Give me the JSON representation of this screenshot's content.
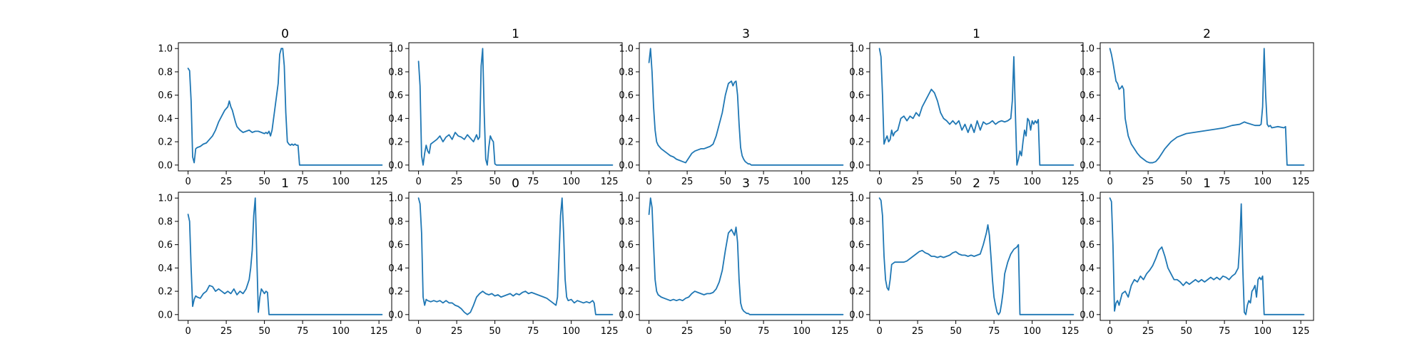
{
  "figure": {
    "line_color": "#1f77b4",
    "layout": "2 rows x 5 columns"
  },
  "chart_data": [
    {
      "type": "line",
      "title": "0",
      "xlim": [
        0,
        127
      ],
      "ylim": [
        0,
        1.0
      ],
      "xticks": [
        0,
        25,
        50,
        75,
        100,
        125
      ],
      "yticks": [
        0.0,
        0.2,
        0.4,
        0.6,
        0.8,
        1.0
      ],
      "x": [
        0,
        1,
        2,
        3,
        4,
        5,
        6,
        8,
        10,
        12,
        14,
        16,
        18,
        20,
        22,
        24,
        26,
        27,
        28,
        29,
        30,
        31,
        32,
        34,
        36,
        38,
        40,
        42,
        44,
        46,
        48,
        50,
        51,
        52,
        53,
        54,
        55,
        56,
        57,
        58,
        59,
        60,
        61,
        62,
        63,
        64,
        65,
        66,
        67,
        68,
        69,
        70,
        71,
        72,
        73,
        74,
        75,
        127
      ],
      "y": [
        0.83,
        0.81,
        0.55,
        0.07,
        0.02,
        0.14,
        0.15,
        0.16,
        0.18,
        0.19,
        0.22,
        0.25,
        0.3,
        0.37,
        0.42,
        0.47,
        0.5,
        0.55,
        0.5,
        0.47,
        0.42,
        0.37,
        0.33,
        0.3,
        0.28,
        0.29,
        0.3,
        0.28,
        0.29,
        0.29,
        0.28,
        0.27,
        0.28,
        0.27,
        0.29,
        0.25,
        0.3,
        0.4,
        0.5,
        0.6,
        0.7,
        0.95,
        1.0,
        1.0,
        0.85,
        0.45,
        0.2,
        0.18,
        0.17,
        0.18,
        0.17,
        0.18,
        0.17,
        0.17,
        0.0,
        0.0,
        0.0,
        0.0
      ]
    },
    {
      "type": "line",
      "title": "1",
      "xlim": [
        0,
        127
      ],
      "ylim": [
        0,
        1.0
      ],
      "xticks": [
        0,
        25,
        50,
        75,
        100,
        125
      ],
      "yticks": [
        0.0,
        0.2,
        0.4,
        0.6,
        0.8,
        1.0
      ],
      "x": [
        0,
        1,
        2,
        3,
        4,
        5,
        6,
        7,
        8,
        10,
        12,
        14,
        16,
        18,
        20,
        22,
        24,
        26,
        28,
        30,
        32,
        34,
        36,
        38,
        39,
        40,
        41,
        42,
        43,
        44,
        45,
        46,
        47,
        48,
        49,
        50,
        51,
        52,
        127
      ],
      "y": [
        0.89,
        0.68,
        0.08,
        0.0,
        0.1,
        0.17,
        0.12,
        0.1,
        0.18,
        0.2,
        0.22,
        0.25,
        0.2,
        0.24,
        0.26,
        0.22,
        0.28,
        0.25,
        0.24,
        0.22,
        0.26,
        0.23,
        0.2,
        0.26,
        0.22,
        0.24,
        0.85,
        1.0,
        0.45,
        0.05,
        0.0,
        0.15,
        0.25,
        0.22,
        0.2,
        0.01,
        0.0,
        0.0,
        0.0
      ]
    },
    {
      "type": "line",
      "title": "3",
      "xlim": [
        0,
        127
      ],
      "ylim": [
        0,
        1.0
      ],
      "xticks": [
        0,
        25,
        50,
        75,
        100,
        125
      ],
      "yticks": [
        0.0,
        0.2,
        0.4,
        0.6,
        0.8,
        1.0
      ],
      "x": [
        0,
        1,
        2,
        3,
        4,
        5,
        6,
        8,
        10,
        12,
        14,
        16,
        18,
        20,
        22,
        24,
        26,
        28,
        30,
        32,
        34,
        36,
        38,
        40,
        42,
        44,
        46,
        48,
        50,
        52,
        54,
        55,
        56,
        57,
        58,
        59,
        60,
        61,
        62,
        63,
        64,
        65,
        66,
        67,
        68,
        70,
        127
      ],
      "y": [
        0.88,
        1.0,
        0.8,
        0.5,
        0.3,
        0.2,
        0.17,
        0.14,
        0.12,
        0.1,
        0.08,
        0.07,
        0.05,
        0.04,
        0.03,
        0.02,
        0.06,
        0.1,
        0.12,
        0.13,
        0.14,
        0.14,
        0.15,
        0.16,
        0.18,
        0.25,
        0.35,
        0.45,
        0.6,
        0.7,
        0.72,
        0.68,
        0.71,
        0.72,
        0.6,
        0.35,
        0.15,
        0.08,
        0.05,
        0.03,
        0.02,
        0.01,
        0.01,
        0.0,
        0.0,
        0.0,
        0.0
      ]
    },
    {
      "type": "line",
      "title": "1",
      "xlim": [
        0,
        127
      ],
      "ylim": [
        0,
        1.0
      ],
      "xticks": [
        0,
        25,
        50,
        75,
        100,
        125
      ],
      "yticks": [
        0.0,
        0.2,
        0.4,
        0.6,
        0.8,
        1.0
      ],
      "x": [
        0,
        1,
        2,
        3,
        4,
        5,
        6,
        7,
        8,
        9,
        10,
        12,
        14,
        16,
        18,
        20,
        22,
        24,
        26,
        28,
        30,
        32,
        34,
        36,
        38,
        40,
        42,
        44,
        46,
        48,
        50,
        52,
        54,
        56,
        58,
        60,
        62,
        64,
        66,
        68,
        70,
        72,
        74,
        76,
        78,
        80,
        82,
        84,
        86,
        87,
        88,
        89,
        90,
        91,
        92,
        93,
        94,
        95,
        96,
        97,
        98,
        99,
        100,
        101,
        102,
        103,
        104,
        105,
        106,
        107,
        108,
        127
      ],
      "y": [
        1.0,
        0.93,
        0.6,
        0.18,
        0.22,
        0.25,
        0.2,
        0.22,
        0.3,
        0.25,
        0.28,
        0.3,
        0.4,
        0.42,
        0.38,
        0.42,
        0.4,
        0.45,
        0.42,
        0.5,
        0.55,
        0.6,
        0.65,
        0.62,
        0.55,
        0.45,
        0.4,
        0.38,
        0.35,
        0.38,
        0.35,
        0.38,
        0.3,
        0.35,
        0.28,
        0.35,
        0.28,
        0.38,
        0.3,
        0.37,
        0.35,
        0.36,
        0.38,
        0.35,
        0.37,
        0.38,
        0.37,
        0.38,
        0.4,
        0.55,
        0.93,
        0.45,
        0.0,
        0.05,
        0.12,
        0.08,
        0.2,
        0.3,
        0.25,
        0.4,
        0.38,
        0.3,
        0.38,
        0.35,
        0.38,
        0.36,
        0.39,
        0.0,
        0.0,
        0.0,
        0.0,
        0.0
      ]
    },
    {
      "type": "line",
      "title": "2",
      "xlim": [
        0,
        127
      ],
      "ylim": [
        0,
        1.0
      ],
      "xticks": [
        0,
        25,
        50,
        75,
        100,
        125
      ],
      "yticks": [
        0.0,
        0.2,
        0.4,
        0.6,
        0.8,
        1.0
      ],
      "x": [
        0,
        1,
        2,
        3,
        4,
        5,
        6,
        7,
        8,
        9,
        10,
        12,
        14,
        16,
        18,
        20,
        22,
        24,
        26,
        28,
        30,
        32,
        34,
        36,
        38,
        40,
        42,
        44,
        46,
        48,
        50,
        55,
        60,
        65,
        70,
        75,
        80,
        85,
        88,
        90,
        95,
        98,
        99,
        100,
        101,
        102,
        103,
        104,
        105,
        106,
        110,
        114,
        115,
        116,
        117,
        118,
        127
      ],
      "y": [
        1.0,
        0.95,
        0.88,
        0.8,
        0.72,
        0.7,
        0.65,
        0.66,
        0.68,
        0.65,
        0.4,
        0.25,
        0.18,
        0.14,
        0.1,
        0.07,
        0.05,
        0.03,
        0.02,
        0.02,
        0.03,
        0.06,
        0.1,
        0.14,
        0.17,
        0.2,
        0.22,
        0.24,
        0.25,
        0.26,
        0.27,
        0.28,
        0.29,
        0.3,
        0.31,
        0.32,
        0.34,
        0.35,
        0.37,
        0.36,
        0.34,
        0.34,
        0.35,
        0.5,
        1.0,
        0.6,
        0.35,
        0.33,
        0.34,
        0.32,
        0.33,
        0.32,
        0.33,
        0.0,
        0.0,
        0.0,
        0.0
      ]
    },
    {
      "type": "line",
      "title": "1",
      "xlim": [
        0,
        127
      ],
      "ylim": [
        0,
        1.0
      ],
      "xticks": [
        0,
        25,
        50,
        75,
        100,
        125
      ],
      "yticks": [
        0.0,
        0.2,
        0.4,
        0.6,
        0.8,
        1.0
      ],
      "x": [
        0,
        1,
        2,
        3,
        4,
        5,
        6,
        8,
        10,
        12,
        14,
        16,
        18,
        20,
        22,
        24,
        26,
        28,
        30,
        32,
        34,
        36,
        38,
        40,
        41,
        42,
        43,
        44,
        45,
        46,
        47,
        48,
        49,
        50,
        51,
        52,
        53,
        54,
        55,
        56,
        127
      ],
      "y": [
        0.86,
        0.8,
        0.4,
        0.07,
        0.13,
        0.16,
        0.15,
        0.14,
        0.18,
        0.2,
        0.25,
        0.24,
        0.2,
        0.22,
        0.2,
        0.18,
        0.2,
        0.18,
        0.22,
        0.17,
        0.2,
        0.18,
        0.22,
        0.3,
        0.4,
        0.55,
        0.85,
        1.0,
        0.5,
        0.02,
        0.15,
        0.22,
        0.2,
        0.18,
        0.2,
        0.19,
        0.0,
        0.0,
        0.0,
        0.0,
        0.0
      ]
    },
    {
      "type": "line",
      "title": "0",
      "xlim": [
        0,
        127
      ],
      "ylim": [
        0,
        1.0
      ],
      "xticks": [
        0,
        25,
        50,
        75,
        100,
        125
      ],
      "yticks": [
        0.0,
        0.2,
        0.4,
        0.6,
        0.8,
        1.0
      ],
      "x": [
        0,
        1,
        2,
        3,
        4,
        5,
        6,
        8,
        10,
        12,
        14,
        16,
        18,
        20,
        22,
        24,
        26,
        28,
        30,
        32,
        34,
        36,
        38,
        40,
        42,
        44,
        46,
        48,
        50,
        52,
        54,
        56,
        58,
        60,
        62,
        64,
        66,
        68,
        70,
        72,
        74,
        76,
        78,
        80,
        82,
        84,
        86,
        88,
        90,
        91,
        92,
        93,
        94,
        95,
        96,
        97,
        98,
        100,
        102,
        104,
        106,
        108,
        110,
        112,
        114,
        115,
        116,
        117,
        118,
        127
      ],
      "y": [
        1.0,
        0.95,
        0.7,
        0.15,
        0.08,
        0.13,
        0.12,
        0.11,
        0.12,
        0.11,
        0.12,
        0.1,
        0.12,
        0.1,
        0.1,
        0.08,
        0.07,
        0.05,
        0.02,
        0.0,
        0.02,
        0.08,
        0.15,
        0.18,
        0.2,
        0.18,
        0.17,
        0.18,
        0.16,
        0.17,
        0.15,
        0.16,
        0.17,
        0.18,
        0.16,
        0.18,
        0.17,
        0.19,
        0.2,
        0.18,
        0.19,
        0.18,
        0.17,
        0.16,
        0.15,
        0.14,
        0.12,
        0.1,
        0.08,
        0.15,
        0.5,
        0.85,
        1.0,
        0.7,
        0.3,
        0.15,
        0.12,
        0.13,
        0.1,
        0.12,
        0.11,
        0.1,
        0.11,
        0.1,
        0.12,
        0.1,
        0.0,
        0.0,
        0.0,
        0.0
      ]
    },
    {
      "type": "line",
      "title": "3",
      "xlim": [
        0,
        127
      ],
      "ylim": [
        0,
        1.0
      ],
      "xticks": [
        0,
        25,
        50,
        75,
        100,
        125
      ],
      "yticks": [
        0.0,
        0.2,
        0.4,
        0.6,
        0.8,
        1.0
      ],
      "x": [
        0,
        1,
        2,
        3,
        4,
        5,
        6,
        8,
        10,
        12,
        14,
        16,
        18,
        20,
        22,
        24,
        26,
        28,
        30,
        32,
        34,
        36,
        38,
        40,
        42,
        44,
        46,
        48,
        50,
        52,
        54,
        56,
        57,
        58,
        59,
        60,
        61,
        62,
        63,
        64,
        65,
        66,
        67,
        68,
        70,
        72,
        127
      ],
      "y": [
        0.86,
        1.0,
        0.92,
        0.6,
        0.3,
        0.2,
        0.17,
        0.15,
        0.14,
        0.13,
        0.12,
        0.13,
        0.12,
        0.13,
        0.12,
        0.14,
        0.15,
        0.18,
        0.2,
        0.19,
        0.18,
        0.17,
        0.18,
        0.18,
        0.19,
        0.22,
        0.28,
        0.38,
        0.55,
        0.7,
        0.73,
        0.68,
        0.75,
        0.62,
        0.3,
        0.1,
        0.05,
        0.03,
        0.02,
        0.01,
        0.01,
        0.0,
        0.0,
        0.0,
        0.0,
        0.0,
        0.0
      ]
    },
    {
      "type": "line",
      "title": "2",
      "xlim": [
        0,
        127
      ],
      "ylim": [
        0,
        1.0
      ],
      "xticks": [
        0,
        25,
        50,
        75,
        100,
        125
      ],
      "yticks": [
        0.0,
        0.2,
        0.4,
        0.6,
        0.8,
        1.0
      ],
      "x": [
        0,
        1,
        2,
        3,
        4,
        5,
        6,
        7,
        8,
        10,
        12,
        14,
        16,
        18,
        20,
        22,
        24,
        26,
        28,
        30,
        32,
        34,
        36,
        38,
        40,
        42,
        44,
        46,
        48,
        50,
        52,
        54,
        56,
        58,
        60,
        62,
        64,
        66,
        68,
        70,
        71,
        72,
        73,
        74,
        75,
        76,
        77,
        78,
        79,
        80,
        81,
        82,
        84,
        86,
        88,
        90,
        91,
        92,
        93,
        94,
        95,
        127
      ],
      "y": [
        1.0,
        0.98,
        0.85,
        0.5,
        0.3,
        0.23,
        0.21,
        0.3,
        0.43,
        0.45,
        0.45,
        0.45,
        0.45,
        0.46,
        0.48,
        0.5,
        0.52,
        0.54,
        0.55,
        0.53,
        0.52,
        0.5,
        0.5,
        0.49,
        0.5,
        0.49,
        0.5,
        0.51,
        0.53,
        0.54,
        0.52,
        0.51,
        0.51,
        0.5,
        0.51,
        0.5,
        0.51,
        0.52,
        0.6,
        0.7,
        0.77,
        0.68,
        0.5,
        0.3,
        0.15,
        0.08,
        0.02,
        0.0,
        0.02,
        0.1,
        0.2,
        0.35,
        0.45,
        0.52,
        0.56,
        0.58,
        0.6,
        0.0,
        0.0,
        0.0,
        0.0,
        0.0
      ]
    },
    {
      "type": "line",
      "title": "1",
      "xlim": [
        0,
        127
      ],
      "ylim": [
        0,
        1.0
      ],
      "xticks": [
        0,
        25,
        50,
        75,
        100,
        125
      ],
      "yticks": [
        0.0,
        0.2,
        0.4,
        0.6,
        0.8,
        1.0
      ],
      "x": [
        0,
        1,
        2,
        3,
        4,
        5,
        6,
        8,
        10,
        12,
        14,
        16,
        18,
        20,
        22,
        24,
        26,
        28,
        30,
        32,
        34,
        36,
        38,
        40,
        42,
        44,
        46,
        48,
        50,
        52,
        54,
        56,
        58,
        60,
        62,
        64,
        66,
        68,
        70,
        72,
        74,
        76,
        78,
        80,
        82,
        84,
        85,
        86,
        87,
        88,
        89,
        90,
        91,
        92,
        93,
        94,
        95,
        96,
        97,
        98,
        99,
        100,
        101,
        102,
        103,
        104,
        127
      ],
      "y": [
        1.0,
        0.97,
        0.6,
        0.03,
        0.1,
        0.12,
        0.08,
        0.18,
        0.2,
        0.15,
        0.25,
        0.3,
        0.28,
        0.33,
        0.3,
        0.35,
        0.38,
        0.42,
        0.48,
        0.55,
        0.58,
        0.5,
        0.4,
        0.35,
        0.3,
        0.3,
        0.28,
        0.25,
        0.28,
        0.26,
        0.28,
        0.3,
        0.28,
        0.3,
        0.28,
        0.3,
        0.32,
        0.3,
        0.32,
        0.3,
        0.33,
        0.32,
        0.3,
        0.33,
        0.35,
        0.4,
        0.6,
        0.95,
        0.4,
        0.02,
        0.0,
        0.08,
        0.12,
        0.1,
        0.2,
        0.22,
        0.25,
        0.15,
        0.3,
        0.32,
        0.3,
        0.33,
        0.0,
        0.0,
        0.0,
        0.0,
        0.0
      ]
    }
  ]
}
